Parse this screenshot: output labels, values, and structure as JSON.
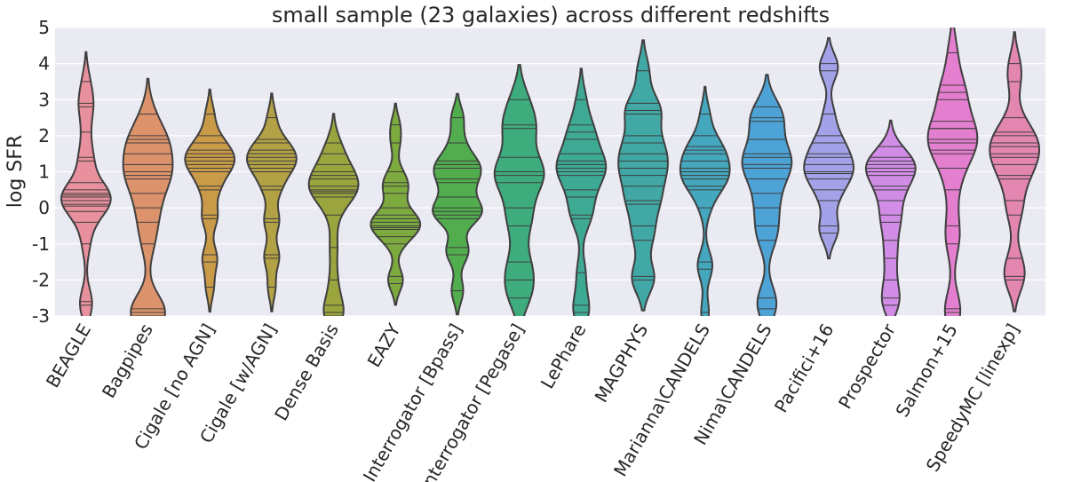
{
  "chart_data": {
    "type": "violin",
    "title": "small sample (23 galaxies) across different redshifts",
    "y_label": "log SFR",
    "categories": [
      "BEAGLE",
      "Bagpipes",
      "Cigale [no AGN]",
      "Cigale [w/AGN]",
      "Dense Basis",
      "EAZY",
      "Interrogator [Bpass]",
      "Interrogator [Pegase]",
      "LePhare",
      "MAGPHYS",
      "Marianna\\CANDELS",
      "Nima\\CANDELS",
      "Pacifici+16",
      "Prospector",
      "Salmon+15",
      "SpeedyMC [linexp]"
    ],
    "colors": [
      "#e8909d",
      "#dc936b",
      "#c99b48",
      "#b3a146",
      "#9ba53e",
      "#7daa3e",
      "#52ad4e",
      "#3eac7d",
      "#3faa94",
      "#41a8a5",
      "#44a7bd",
      "#4ea3d6",
      "#a3a2e8",
      "#d18de6",
      "#e47fd0",
      "#e386b0"
    ],
    "values": [
      [
        3.5,
        2.9,
        2.8,
        2.1,
        1.4,
        1.3,
        0.7,
        0.5,
        0.4,
        0.35,
        0.3,
        0.2,
        0.1,
        0.05,
        -0.1,
        -0.4,
        -1.0,
        -2.6,
        -2.7
      ],
      [
        2.6,
        2.0,
        1.9,
        1.8,
        1.5,
        1.2,
        1.0,
        0.9,
        0.8,
        0.4,
        0.0,
        -0.4,
        -1.0,
        -2.8,
        -2.9,
        -2.9,
        -3.0
      ],
      [
        2.6,
        2.0,
        1.8,
        1.6,
        1.5,
        1.4,
        1.3,
        1.2,
        1.1,
        1.0,
        0.6,
        0.5,
        -0.2,
        -0.3,
        -1.3,
        -1.5,
        -2.2
      ],
      [
        2.5,
        1.9,
        1.8,
        1.6,
        1.5,
        1.4,
        1.3,
        1.2,
        1.1,
        1.0,
        0.6,
        0.5,
        -0.3,
        -0.4,
        -1.3,
        -1.4,
        -2.2
      ],
      [
        1.8,
        1.5,
        1.2,
        1.0,
        0.9,
        0.8,
        0.6,
        0.5,
        0.45,
        0.4,
        0.3,
        -0.2,
        -1.1,
        -2.0,
        -2.7,
        -2.9,
        -3.0
      ],
      [
        2.3,
        1.8,
        1.0,
        0.7,
        0.6,
        0.4,
        0.0,
        -0.2,
        -0.3,
        -0.4,
        -0.5,
        -0.55,
        -0.6,
        -0.8,
        -1.0,
        -1.9,
        -2.1
      ],
      [
        2.5,
        1.8,
        1.3,
        1.2,
        1.1,
        0.8,
        0.7,
        0.3,
        0.0,
        -0.1,
        -0.2,
        -0.3,
        -1.1,
        -1.3,
        -2.3
      ],
      [
        3.0,
        2.3,
        2.2,
        1.4,
        1.0,
        0.9,
        0.7,
        0.0,
        -0.5,
        -1.5,
        -2.0,
        -2.5
      ],
      [
        3.0,
        2.3,
        2.1,
        1.9,
        1.5,
        1.3,
        1.2,
        1.1,
        1.0,
        0.9,
        0.5,
        0.3,
        -0.2,
        -0.3,
        -1.8,
        -2.7,
        -2.9
      ],
      [
        3.8,
        2.9,
        2.7,
        2.6,
        2.0,
        1.8,
        1.5,
        1.3,
        1.1,
        0.9,
        0.6,
        0.2,
        0.1,
        -0.5,
        -0.9,
        -1.9,
        -2.0
      ],
      [
        2.6,
        2.0,
        1.7,
        1.6,
        1.5,
        1.3,
        1.1,
        1.0,
        0.9,
        0.8,
        0.6,
        0.5,
        0.0,
        -1.5,
        -1.7,
        -2.9
      ],
      [
        2.8,
        2.5,
        2.4,
        1.9,
        1.5,
        1.4,
        1.2,
        1.1,
        0.8,
        0.4,
        0.0,
        -0.5,
        -0.9,
        -2.5,
        -2.8
      ],
      [
        4.0,
        3.8,
        2.6,
        2.0,
        1.8,
        1.5,
        1.4,
        1.2,
        1.0,
        0.95,
        0.8,
        0.5,
        0.2,
        -0.5,
        -0.7
      ],
      [
        1.7,
        1.4,
        1.3,
        1.2,
        1.1,
        1.0,
        0.9,
        0.6,
        0.5,
        0.2,
        -0.2,
        -0.4,
        -0.9,
        -1.4,
        -2.0,
        -2.5,
        -2.7
      ],
      [
        4.3,
        3.4,
        3.2,
        3.0,
        2.4,
        2.2,
        2.2,
        1.9,
        1.8,
        1.6,
        1.5,
        1.1,
        0.5,
        -0.5,
        -1.0,
        -2.8,
        -2.9
      ],
      [
        4.0,
        3.5,
        2.5,
        2.1,
        2.0,
        1.8,
        1.7,
        1.5,
        1.4,
        1.2,
        0.9,
        0.8,
        0.2,
        -0.2,
        -1.4,
        -1.9,
        -2.0
      ]
    ],
    "ylim": [
      -3,
      5
    ],
    "yticks": [
      -3,
      -2,
      -1,
      0,
      1,
      2,
      3,
      4,
      5
    ],
    "grid": true
  }
}
